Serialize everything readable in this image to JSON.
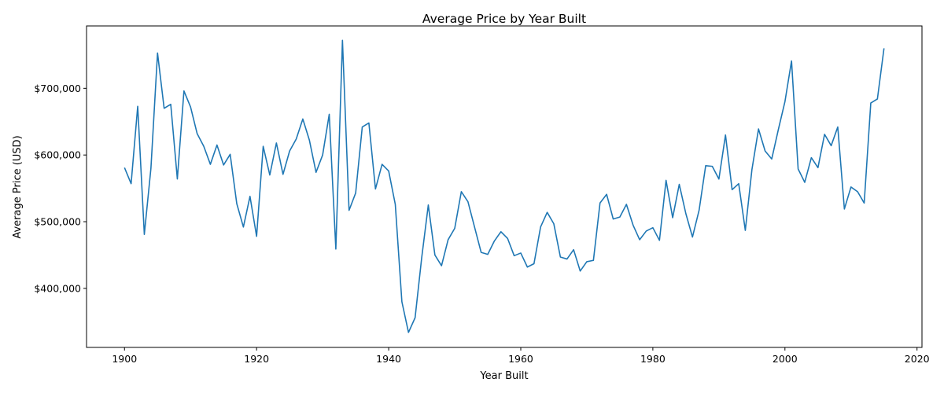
{
  "chart_data": {
    "type": "line",
    "title": "Average Price by Year Built",
    "xlabel": "Year Built",
    "ylabel": "Average Price (USD)",
    "xlim": [
      1894.25,
      2020.75
    ],
    "ylim": [
      311500,
      793500
    ],
    "xticks": [
      1900,
      1920,
      1940,
      1960,
      1980,
      2000,
      2020
    ],
    "xtick_labels": [
      "1900",
      "1920",
      "1940",
      "1960",
      "1980",
      "2000",
      "2020"
    ],
    "yticks": [
      400000,
      500000,
      600000,
      700000
    ],
    "ytick_labels": [
      "$400,000",
      "$500,000",
      "$600,000",
      "$700,000"
    ],
    "grid": false,
    "legend": "none",
    "line_color": "#1f77b4",
    "series": [
      {
        "x": [
          1900,
          1901,
          1902,
          1903,
          1904,
          1905,
          1906,
          1907,
          1908,
          1909,
          1910,
          1911,
          1912,
          1913,
          1914,
          1915,
          1916,
          1917,
          1918,
          1919,
          1920,
          1921,
          1922,
          1923,
          1924,
          1925,
          1926,
          1927,
          1928,
          1929,
          1930,
          1931,
          1932,
          1933,
          1934,
          1935,
          1936,
          1937,
          1938,
          1939,
          1940,
          1941,
          1942,
          1943,
          1944,
          1945,
          1946,
          1947,
          1948,
          1949,
          1950,
          1951,
          1952,
          1953,
          1954,
          1955,
          1956,
          1957,
          1958,
          1959,
          1960,
          1961,
          1962,
          1963,
          1964,
          1965,
          1966,
          1967,
          1968,
          1969,
          1970,
          1971,
          1972,
          1973,
          1974,
          1975,
          1976,
          1977,
          1978,
          1979,
          1980,
          1981,
          1982,
          1983,
          1984,
          1985,
          1986,
          1987,
          1988,
          1989,
          1990,
          1991,
          1992,
          1993,
          1994,
          1995,
          1996,
          1997,
          1998,
          1999,
          2000,
          2001,
          2002,
          2003,
          2004,
          2005,
          2006,
          2007,
          2008,
          2009,
          2010,
          2011,
          2012,
          2013,
          2014,
          2015
        ],
        "y": [
          581000,
          557000,
          673000,
          481000,
          580000,
          753000,
          670000,
          676000,
          564000,
          696000,
          672000,
          632000,
          613000,
          586000,
          615000,
          585000,
          601000,
          527000,
          492000,
          538000,
          478000,
          613000,
          570000,
          618000,
          571000,
          606000,
          624000,
          654000,
          622000,
          574000,
          600000,
          661000,
          459000,
          772000,
          517000,
          543000,
          642000,
          648000,
          549000,
          586000,
          576000,
          526000,
          380000,
          334000,
          356000,
          446000,
          525000,
          450000,
          434000,
          473000,
          490000,
          545000,
          530000,
          492000,
          454000,
          451000,
          471000,
          485000,
          475000,
          449000,
          453000,
          432000,
          437000,
          492000,
          514000,
          497000,
          447000,
          444000,
          458000,
          426000,
          440000,
          442000,
          528000,
          541000,
          504000,
          507000,
          526000,
          495000,
          473000,
          486000,
          491000,
          472000,
          562000,
          506000,
          556000,
          512000,
          477000,
          517000,
          584000,
          583000,
          564000,
          630000,
          548000,
          557000,
          487000,
          578000,
          639000,
          606000,
          594000,
          638000,
          680000,
          741000,
          579000,
          559000,
          596000,
          581000,
          631000,
          614000,
          642000,
          519000,
          552000,
          545000,
          528000,
          678000,
          684000,
          760000
        ]
      }
    ]
  }
}
